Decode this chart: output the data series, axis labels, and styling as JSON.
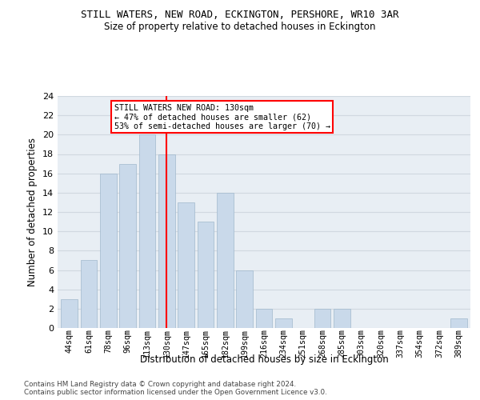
{
  "title": "STILL WATERS, NEW ROAD, ECKINGTON, PERSHORE, WR10 3AR",
  "subtitle": "Size of property relative to detached houses in Eckington",
  "xlabel": "Distribution of detached houses by size in Eckington",
  "ylabel": "Number of detached properties",
  "categories": [
    "44sqm",
    "61sqm",
    "78sqm",
    "96sqm",
    "113sqm",
    "130sqm",
    "147sqm",
    "165sqm",
    "182sqm",
    "199sqm",
    "216sqm",
    "234sqm",
    "251sqm",
    "268sqm",
    "285sqm",
    "303sqm",
    "320sqm",
    "337sqm",
    "354sqm",
    "372sqm",
    "389sqm"
  ],
  "values": [
    3,
    7,
    16,
    17,
    20,
    18,
    13,
    11,
    14,
    6,
    2,
    1,
    0,
    2,
    2,
    0,
    0,
    0,
    0,
    0,
    1
  ],
  "bar_color": "#c9d9ea",
  "bar_edgecolor": "#a0b8cc",
  "redline_index": 5,
  "redline_label": "STILL WATERS NEW ROAD: 130sqm",
  "annotation_line2": "← 47% of detached houses are smaller (62)",
  "annotation_line3": "53% of semi-detached houses are larger (70) →",
  "ylim": [
    0,
    24
  ],
  "yticks": [
    0,
    2,
    4,
    6,
    8,
    10,
    12,
    14,
    16,
    18,
    20,
    22,
    24
  ],
  "grid_color": "#d0d8e0",
  "background_color": "#e8eef4",
  "footer_line1": "Contains HM Land Registry data © Crown copyright and database right 2024.",
  "footer_line2": "Contains public sector information licensed under the Open Government Licence v3.0."
}
